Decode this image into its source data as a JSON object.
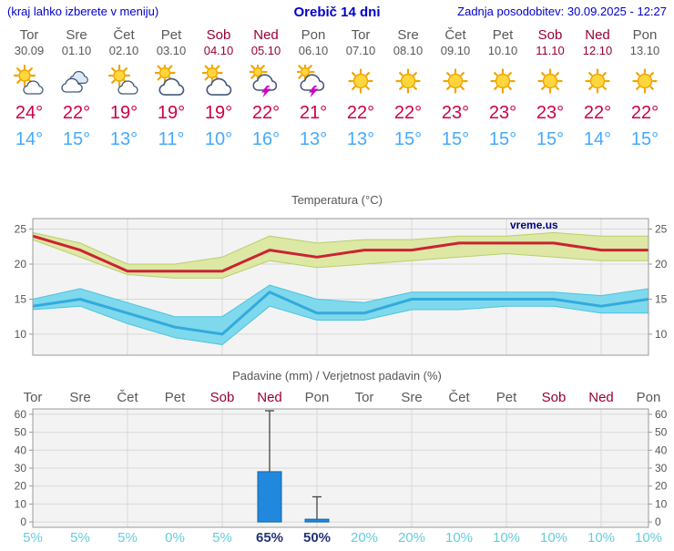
{
  "header": {
    "left_note": "(kraj lahko izberete v meniju)",
    "title": "Orebič 14 dni",
    "last_update": "Zadnja posodobitev: 30.09.2025 - 12:27"
  },
  "colors": {
    "header_blue": "#0000cc",
    "day_gray": "#595959",
    "weekend_red": "#990033",
    "high_temp": "#cc0044",
    "low_temp": "#44aaff",
    "plot_bg": "#f3f3f3",
    "grid": "#d8d8d8",
    "border": "#999999",
    "title_gray": "#555555",
    "tick_text": "#555555",
    "max_line": "#cc2233",
    "max_band": "#dde8a4",
    "max_band_edge": "#b9cf6a",
    "min_line": "#33aadd",
    "min_band": "#7fd9ec",
    "min_band_edge": "#4cc3df",
    "bar": "#2288dd",
    "bar_edge": "#1565a0",
    "whisker": "#444444",
    "pct": "#66ccdd",
    "pct_bold": "#223377",
    "watermark": "#000080"
  },
  "days": [
    {
      "name": "Tor",
      "date": "30.09",
      "weekend": false,
      "icon": "partly-sunny",
      "high": "24°",
      "low": "14°"
    },
    {
      "name": "Sre",
      "date": "01.10",
      "weekend": false,
      "icon": "cloudy",
      "high": "22°",
      "low": "15°"
    },
    {
      "name": "Čet",
      "date": "02.10",
      "weekend": false,
      "icon": "partly-sunny",
      "high": "19°",
      "low": "13°"
    },
    {
      "name": "Pet",
      "date": "03.10",
      "weekend": false,
      "icon": "mostly-cloudy",
      "high": "19°",
      "low": "11°"
    },
    {
      "name": "Sob",
      "date": "04.10",
      "weekend": true,
      "icon": "mostly-cloudy",
      "high": "19°",
      "low": "10°"
    },
    {
      "name": "Ned",
      "date": "05.10",
      "weekend": true,
      "icon": "thunderstorm",
      "high": "22°",
      "low": "16°"
    },
    {
      "name": "Pon",
      "date": "06.10",
      "weekend": false,
      "icon": "thunderstorm",
      "high": "21°",
      "low": "13°"
    },
    {
      "name": "Tor",
      "date": "07.10",
      "weekend": false,
      "icon": "sunny",
      "high": "22°",
      "low": "13°"
    },
    {
      "name": "Sre",
      "date": "08.10",
      "weekend": false,
      "icon": "sunny",
      "high": "22°",
      "low": "15°"
    },
    {
      "name": "Čet",
      "date": "09.10",
      "weekend": false,
      "icon": "sunny",
      "high": "23°",
      "low": "15°"
    },
    {
      "name": "Pet",
      "date": "10.10",
      "weekend": false,
      "icon": "sunny",
      "high": "23°",
      "low": "15°"
    },
    {
      "name": "Sob",
      "date": "11.10",
      "weekend": true,
      "icon": "sunny",
      "high": "23°",
      "low": "15°"
    },
    {
      "name": "Ned",
      "date": "12.10",
      "weekend": true,
      "icon": "sunny",
      "high": "22°",
      "low": "14°"
    },
    {
      "name": "Pon",
      "date": "13.10",
      "weekend": false,
      "icon": "sunny",
      "high": "22°",
      "low": "15°"
    }
  ],
  "chart_data": [
    {
      "type": "line",
      "title": "Temperatura (°C)",
      "watermark": "vreme.us",
      "x": [
        "Tor 30.09",
        "Sre 01.10",
        "Čet 02.10",
        "Pet 03.10",
        "Sob 04.10",
        "Ned 05.10",
        "Pon 06.10",
        "Tor 07.10",
        "Sre 08.10",
        "Čet 09.10",
        "Pet 10.10",
        "Sob 11.10",
        "Ned 12.10",
        "Pon 13.10"
      ],
      "yticks": [
        10,
        15,
        20,
        25
      ],
      "ylim": [
        7,
        26.5
      ],
      "grid": true,
      "series": [
        {
          "name": "max-temperature",
          "values": [
            24,
            22,
            19,
            19,
            19,
            22,
            21,
            22,
            22,
            23,
            23,
            23,
            22,
            22
          ],
          "band_upper": [
            24.5,
            23,
            20,
            20,
            21,
            24,
            23,
            23.5,
            23.5,
            24,
            24,
            24.5,
            24,
            24
          ],
          "band_lower": [
            23.5,
            21,
            18.5,
            18,
            18,
            20.5,
            19.5,
            20,
            20.5,
            21,
            21.5,
            21,
            20.5,
            20.5
          ]
        },
        {
          "name": "min-temperature",
          "values": [
            14,
            15,
            13,
            11,
            10,
            16,
            13,
            13,
            15,
            15,
            15,
            15,
            14,
            15
          ],
          "band_upper": [
            15,
            16.5,
            14.5,
            12.5,
            12.5,
            17,
            15,
            14.5,
            16,
            16,
            16,
            16,
            15.5,
            16.5
          ],
          "band_lower": [
            13.5,
            14,
            11.5,
            9.5,
            8.5,
            14,
            12,
            12,
            13.5,
            13.5,
            14,
            14,
            13,
            13
          ]
        }
      ]
    },
    {
      "type": "bar",
      "title": "Padavine (mm) / Verjetnost padavin (%)",
      "categories": [
        "Tor",
        "Sre",
        "Čet",
        "Pet",
        "Sob",
        "Ned",
        "Pon",
        "Tor",
        "Sre",
        "Čet",
        "Pet",
        "Sob",
        "Ned",
        "Pon"
      ],
      "weekend": [
        false,
        false,
        false,
        false,
        true,
        true,
        false,
        false,
        false,
        false,
        false,
        true,
        true,
        false
      ],
      "values": [
        0,
        0,
        0,
        0,
        0,
        28,
        1.5,
        0,
        0,
        0,
        0,
        0,
        0,
        0
      ],
      "error_low": [
        null,
        null,
        null,
        null,
        null,
        8,
        1,
        null,
        null,
        null,
        null,
        null,
        null,
        null
      ],
      "error_high": [
        null,
        null,
        null,
        null,
        null,
        62,
        14,
        null,
        null,
        null,
        null,
        null,
        null,
        null
      ],
      "probabilities": [
        "5%",
        "5%",
        "5%",
        "0%",
        "5%",
        "65%",
        "50%",
        "20%",
        "20%",
        "10%",
        "10%",
        "10%",
        "10%",
        "10%"
      ],
      "prob_bold": [
        false,
        false,
        false,
        false,
        false,
        true,
        true,
        false,
        false,
        false,
        false,
        false,
        false,
        false
      ],
      "yticks": [
        0,
        10,
        20,
        30,
        40,
        50,
        60
      ],
      "ylim": [
        0,
        63
      ],
      "grid": true
    }
  ]
}
